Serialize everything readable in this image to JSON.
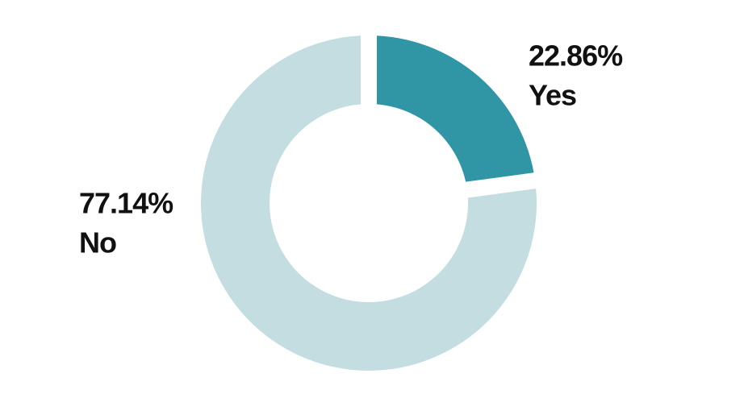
{
  "chart_data": {
    "type": "donut",
    "categories": [
      "Yes",
      "No"
    ],
    "values": [
      22.86,
      77.14
    ],
    "value_labels": [
      "22.86%",
      "77.14%"
    ],
    "colors": [
      "#3096a6",
      "#c3dde0"
    ]
  }
}
